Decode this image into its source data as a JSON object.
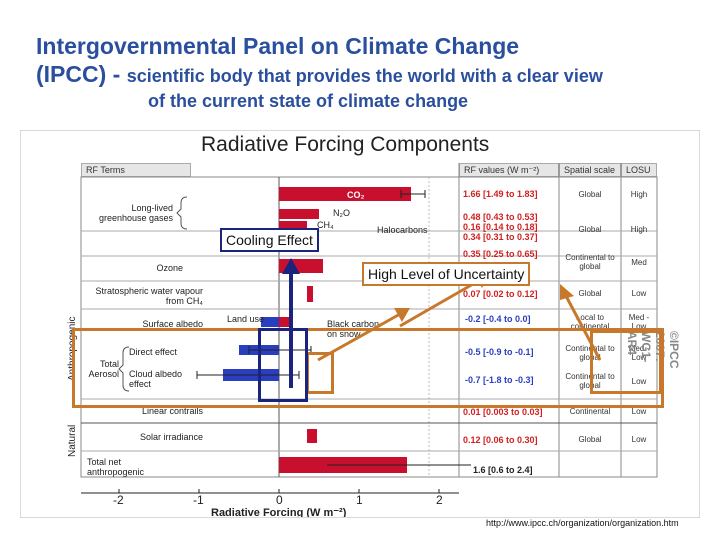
{
  "slide": {
    "title_line1": "Intergovernmental Panel on Climate Change",
    "title_line2_main": "(IPCC) - ",
    "title_line2_sub": "scientific body that provides the world with a clear view",
    "title_line3": "of the current state of climate change"
  },
  "figure": {
    "title": "Radiative Forcing Components",
    "headers": {
      "rf_terms": "RF Terms",
      "rf_values": "RF values (W m⁻²)",
      "spatial_scale": "Spatial scale",
      "losu": "LOSU"
    },
    "group_labels": {
      "anthropogenic": "Anthropogenic",
      "natural": "Natural",
      "total_aerosol": "Total Aerosol"
    },
    "rows": [
      {
        "label": "Long-lived greenhouse gases",
        "value": "1.66 [1.49 to 1.83]",
        "value_color": "red",
        "scale": "Global",
        "losu": "High"
      },
      {
        "label": "N₂O",
        "value": "0.48 [0.43 to 0.53]",
        "value_color": "red",
        "scale": "Global",
        "losu": "High"
      },
      {
        "label": "Halocarbons",
        "value": "0.16 [0.14 to 0.18]",
        "value_color": "red",
        "scale": "",
        "losu": ""
      },
      {
        "label": "",
        "value": "0.34 [0.31 to 0.37]",
        "value_color": "red",
        "scale": "",
        "losu": ""
      },
      {
        "label": "Ozone",
        "value": "0.35 [0.25 to 0.65]",
        "value_color": "red",
        "scale": "Continental to global",
        "losu": "Med"
      },
      {
        "label": "Stratospheric water vapour from CH₄",
        "value": "0.07 [0.02 to 0.12]",
        "value_color": "red",
        "scale": "Global",
        "losu": "Low"
      },
      {
        "label": "Surface albedo",
        "value": "-0.2 [-0.4 to 0.0]",
        "value_color": "blue",
        "scale": "Local to continental",
        "losu": "Med - Low"
      },
      {
        "label": "Direct effect",
        "value": "-0.5 [-0.9 to -0.1]",
        "value_color": "blue",
        "scale": "Continental to global",
        "losu": "Med - Low"
      },
      {
        "label": "Cloud albedo effect",
        "value": "-0.7 [-1.8 to -0.3]",
        "value_color": "blue",
        "scale": "Continental to global",
        "losu": "Low"
      },
      {
        "label": "Linear contrails",
        "value": "0.01 [0.003 to 0.03]",
        "value_color": "red",
        "scale": "Continental",
        "losu": "Low"
      },
      {
        "label": "Solar irradiance",
        "value": "0.12 [0.06 to 0.30]",
        "value_color": "red",
        "scale": "Global",
        "losu": "Low"
      },
      {
        "label": "Total net anthropogenic",
        "value": "1.6 [0.6 to 2.4]",
        "value_color": "dark",
        "scale": "",
        "losu": ""
      }
    ],
    "inline_labels": {
      "co2": "CO₂",
      "ch4": "CH₄",
      "land_use": "Land use",
      "black_carbon": "Black carbon on snow"
    },
    "axis": {
      "ticks": [
        "-2",
        "-1",
        "0",
        "1",
        "2"
      ],
      "xlabel": "Radiative Forcing (W m⁻²)"
    },
    "watermark": "©IPCC 2007: WG1-AR4"
  },
  "callouts": {
    "cooling": "Cooling Effect",
    "uncertainty": "High Level of Uncertainty"
  },
  "source_url": "http://www.ipcc.ch/organization/organization.htm",
  "colors": {
    "title_blue": "#2a4f9e",
    "bar_red": "#c8102e",
    "bar_blue": "#2a3fbf",
    "callout_orange": "#c8782a",
    "callout_navy": "#1a237e"
  }
}
